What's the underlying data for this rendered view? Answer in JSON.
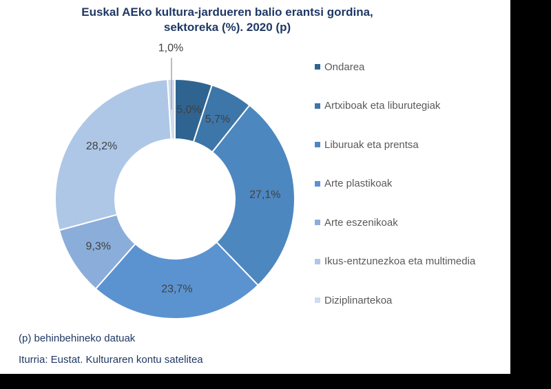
{
  "title": {
    "line1": "Euskal AEko kultura-jardueren balio erantsi gordina,",
    "line2": "sektoreka (%). 2020 (p)"
  },
  "footnote": "(p) behinbehineko datuak",
  "source": "Iturria: Eustat. Kulturaren kontu satelitea",
  "colors": {
    "title_text": "#1F3864",
    "footer_text": "#1F3864",
    "data_label_text": "#404040",
    "legend_text": "#595959",
    "leader_line": "#A6A6A6",
    "segment_gap": "#FFFFFF",
    "frame_bars": "#000000"
  },
  "chart_data": {
    "type": "pie",
    "subtype": "donut",
    "title": "Euskal AEko kultura-jardueren balio erantsi gordina, sektoreka (%). 2020 (p)",
    "unit": "%",
    "start_angle_deg": 0,
    "direction": "clockwise",
    "legend_position": "right",
    "slices": [
      {
        "label": "Ondarea",
        "value": 5.0,
        "display": "5,0%",
        "color": "#2F6491",
        "label_placement": "inside"
      },
      {
        "label": "Artxiboak eta liburutegiak",
        "value": 5.7,
        "display": "5,7%",
        "color": "#3D76A9",
        "label_placement": "inside"
      },
      {
        "label": "Liburuak eta prentsa",
        "value": 27.1,
        "display": "27,1%",
        "color": "#4D87C0",
        "label_placement": "inside"
      },
      {
        "label": "Arte plastikoak",
        "value": 23.7,
        "display": "23,7%",
        "color": "#5B93D0",
        "label_placement": "inside"
      },
      {
        "label": "Arte eszenikoak",
        "value": 9.3,
        "display": "9,3%",
        "color": "#8BADDA",
        "label_placement": "inside"
      },
      {
        "label": "Ikus-entzunezkoa eta multimedia",
        "value": 28.2,
        "display": "28,2%",
        "color": "#AEC7E6",
        "label_placement": "inside"
      },
      {
        "label": "Diziplinartekoa",
        "value": 1.0,
        "display": "1,0%",
        "color": "#CEDCEF",
        "label_placement": "outside-top"
      }
    ]
  }
}
